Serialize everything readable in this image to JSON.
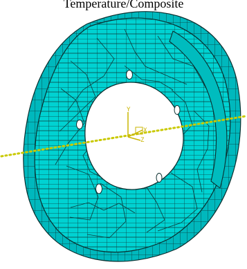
{
  "header": {
    "partial_label": "Temperature/Composite"
  },
  "triad": {
    "x_label": "X",
    "y_label": "Y",
    "z_label": "Z"
  },
  "colors": {
    "mesh_fill": "#00d2d2",
    "mesh_dark": "#00a7ac",
    "mesh_lines": "#0a2f2f",
    "axis_line": "#c9c900",
    "triad_color": "#c9b500"
  },
  "model": {
    "part_type": "brake-disc-mesh",
    "bolt_holes": 5
  }
}
